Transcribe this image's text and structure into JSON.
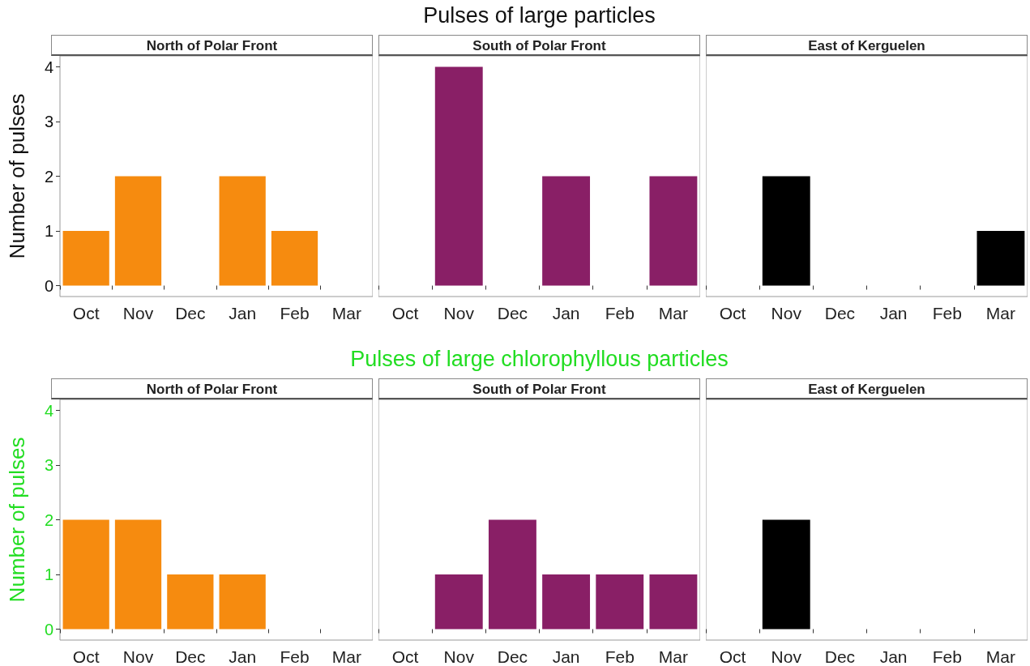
{
  "chart_data": [
    {
      "type": "bar",
      "subtitle": "North of Polar Front",
      "ylabel": "Number of pulses",
      "categories": [
        "Oct",
        "Nov",
        "Dec",
        "Jan",
        "Feb",
        "Mar"
      ],
      "values": [
        1,
        2,
        0,
        2,
        1,
        0
      ],
      "color": "#f68b0f",
      "ylim": [
        -0.2,
        4.2
      ],
      "yticks": [
        0,
        1,
        2,
        3,
        4
      ]
    },
    {
      "type": "bar",
      "title": "Pulses of large particles",
      "subtitle": "South of Polar Front",
      "categories": [
        "Oct",
        "Nov",
        "Dec",
        "Jan",
        "Feb",
        "Mar"
      ],
      "values": [
        0,
        4,
        0,
        2,
        0,
        2
      ],
      "color": "#891f66",
      "ylim": [
        -0.2,
        4.2
      ],
      "yticks": [
        0,
        1,
        2,
        3,
        4
      ],
      "tick_labels": "x"
    },
    {
      "type": "bar",
      "subtitle": "East of Kerguelen",
      "categories": [
        "Oct",
        "Nov",
        "Dec",
        "Jan",
        "Feb",
        "Mar"
      ],
      "values": [
        0,
        2,
        0,
        0,
        0,
        1
      ],
      "color": "#000000",
      "ylim": [
        -0.2,
        4.2
      ],
      "yticks": [
        0,
        1,
        2,
        3,
        4
      ],
      "tick_labels": "x"
    },
    {
      "type": "bar",
      "subtitle": "North of Polar Front",
      "ylabel": "Number of pulses",
      "categories": [
        "Oct",
        "Nov",
        "Dec",
        "Jan",
        "Feb",
        "Mar"
      ],
      "values": [
        2,
        2,
        1,
        1,
        0,
        0
      ],
      "color": "#f68b0f",
      "ylim": [
        -0.2,
        4.2
      ],
      "yticks": [
        0,
        1,
        2,
        3,
        4
      ]
    },
    {
      "type": "bar",
      "title": "Pulses of large chlorophyllous particles",
      "subtitle": "South of Polar Front",
      "categories": [
        "Oct",
        "Nov",
        "Dec",
        "Jan",
        "Feb",
        "Mar"
      ],
      "values": [
        0,
        1,
        2,
        1,
        1,
        1
      ],
      "color": "#891f66",
      "ylim": [
        -0.2,
        4.2
      ],
      "yticks": [
        0,
        1,
        2,
        3,
        4
      ],
      "tick_labels": "x"
    },
    {
      "type": "bar",
      "subtitle": "East of Kerguelen",
      "categories": [
        "Oct",
        "Nov",
        "Dec",
        "Jan",
        "Feb",
        "Mar"
      ],
      "values": [
        0,
        2,
        0,
        0,
        0,
        0
      ],
      "color": "#000000",
      "ylim": [
        -0.2,
        4.2
      ],
      "yticks": [
        0,
        1,
        2,
        3,
        4
      ],
      "tick_labels": "x"
    }
  ]
}
